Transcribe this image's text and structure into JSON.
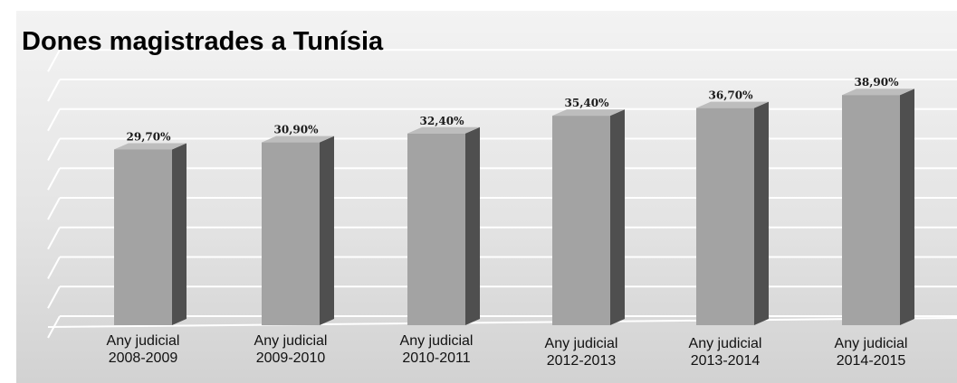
{
  "chart_data": {
    "type": "bar",
    "title": "Dones magistrades a Tunísia",
    "categories": [
      [
        "Any judicial",
        "2008-2009"
      ],
      [
        "Any judicial",
        "2009-2010"
      ],
      [
        "Any judicial",
        "2010-2011"
      ],
      [
        "Any judicial",
        "2012-2013"
      ],
      [
        "Any judicial",
        "2013-2014"
      ],
      [
        "Any judicial",
        "2014-2015"
      ]
    ],
    "values": [
      29.7,
      30.9,
      32.4,
      35.4,
      36.7,
      38.9
    ],
    "data_labels": [
      "29,70%",
      "30,90%",
      "32,40%",
      "35,40%",
      "36,70%",
      "38,90%"
    ],
    "ylim": [
      0,
      45
    ],
    "grid": true,
    "style": "3d-column",
    "colors": {
      "bar_front": "#a3a3a3",
      "bar_side": "#4f4f4f",
      "bar_top": "#bdbdbd",
      "background": "#e2e2e2"
    }
  }
}
